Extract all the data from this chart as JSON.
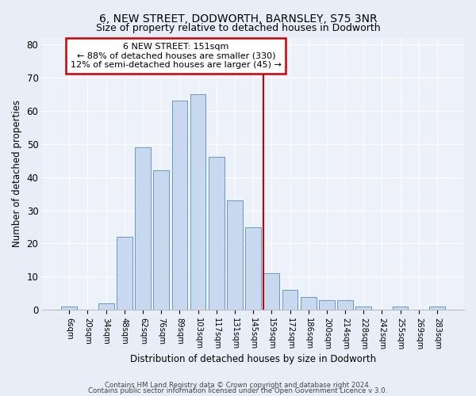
{
  "title": "6, NEW STREET, DODWORTH, BARNSLEY, S75 3NR",
  "subtitle": "Size of property relative to detached houses in Dodworth",
  "xlabel": "Distribution of detached houses by size in Dodworth",
  "ylabel": "Number of detached properties",
  "categories": [
    "6sqm",
    "20sqm",
    "34sqm",
    "48sqm",
    "62sqm",
    "76sqm",
    "89sqm",
    "103sqm",
    "117sqm",
    "131sqm",
    "145sqm",
    "159sqm",
    "172sqm",
    "186sqm",
    "200sqm",
    "214sqm",
    "228sqm",
    "242sqm",
    "255sqm",
    "269sqm",
    "283sqm"
  ],
  "values": [
    1,
    0,
    2,
    22,
    49,
    42,
    63,
    65,
    46,
    33,
    25,
    11,
    6,
    4,
    3,
    3,
    1,
    0,
    1,
    0,
    1
  ],
  "bar_color": "#c8d8ee",
  "bar_edge_color": "#6699cc",
  "vline_x_index": 10.57,
  "vline_color": "#cc0000",
  "annotation_text": "6 NEW STREET: 151sqm\n← 88% of detached houses are smaller (330)\n12% of semi-detached houses are larger (45) →",
  "annotation_box_color": "#ffffff",
  "annotation_box_edge_color": "#cc0000",
  "ylim": [
    0,
    82
  ],
  "yticks": [
    0,
    10,
    20,
    30,
    40,
    50,
    60,
    70,
    80
  ],
  "footer_line1": "Contains HM Land Registry data © Crown copyright and database right 2024.",
  "footer_line2": "Contains public sector information licensed under the Open Government Licence v 3.0.",
  "bg_color": "#e8eef8",
  "plot_bg_color": "#edf2fa",
  "grid_color": "#ffffff",
  "title_fontsize": 10,
  "subtitle_fontsize": 9
}
